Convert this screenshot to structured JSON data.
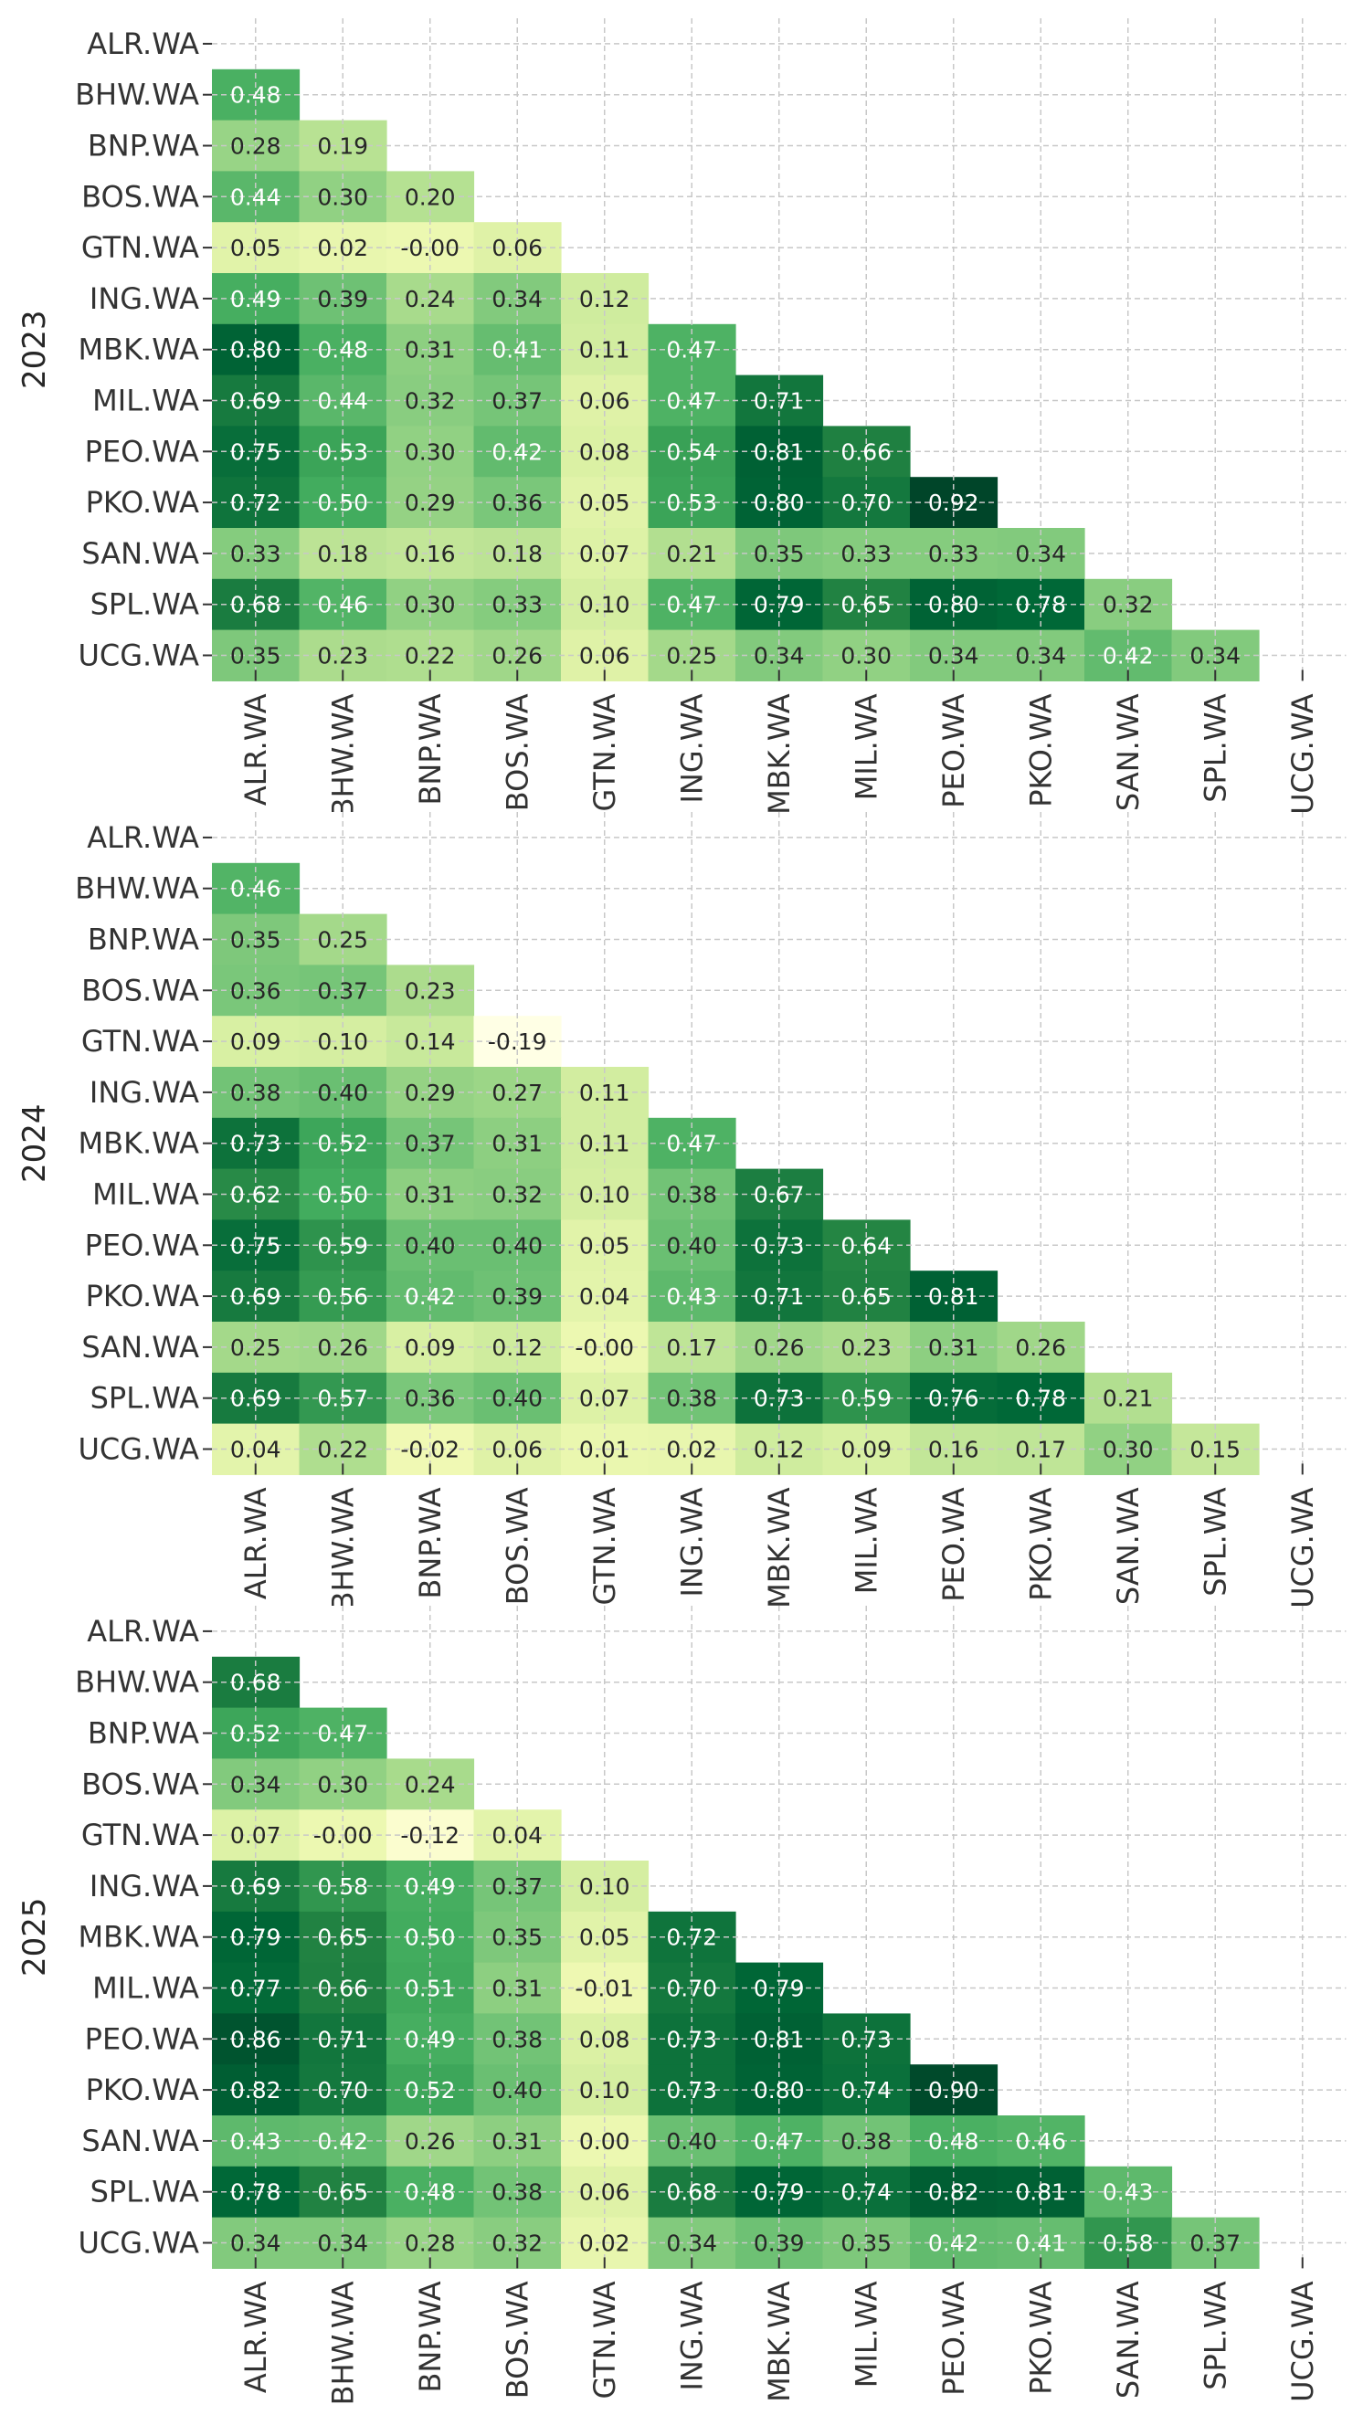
{
  "chart_data": [
    {
      "type": "heatmap",
      "title": "",
      "ylabel": "2023",
      "xlabel": "",
      "colormap": "YlGn",
      "value_range": [
        -0.19,
        0.92
      ],
      "mask": "upper-triangle-including-diagonal",
      "annotation_format": "0.00",
      "rows": [
        "ALR.WA",
        "BHW.WA",
        "BNP.WA",
        "BOS.WA",
        "GTN.WA",
        "ING.WA",
        "MBK.WA",
        "MIL.WA",
        "PEO.WA",
        "PKO.WA",
        "SAN.WA",
        "SPL.WA",
        "UCG.WA"
      ],
      "columns": [
        "ALR.WA",
        "BHW.WA",
        "BNP.WA",
        "BOS.WA",
        "GTN.WA",
        "ING.WA",
        "MBK.WA",
        "MIL.WA",
        "PEO.WA",
        "PKO.WA",
        "SAN.WA",
        "SPL.WA",
        "UCG.WA"
      ],
      "values": [
        [],
        [
          0.48
        ],
        [
          0.28,
          0.19
        ],
        [
          0.44,
          0.3,
          0.2
        ],
        [
          0.05,
          0.02,
          -0.0,
          0.06
        ],
        [
          0.49,
          0.39,
          0.24,
          0.34,
          0.12
        ],
        [
          0.8,
          0.48,
          0.31,
          0.41,
          0.11,
          0.47
        ],
        [
          0.69,
          0.44,
          0.32,
          0.37,
          0.06,
          0.47,
          0.71
        ],
        [
          0.75,
          0.53,
          0.3,
          0.42,
          0.08,
          0.54,
          0.81,
          0.66
        ],
        [
          0.72,
          0.5,
          0.29,
          0.36,
          0.05,
          0.53,
          0.8,
          0.7,
          0.92
        ],
        [
          0.33,
          0.18,
          0.16,
          0.18,
          0.07,
          0.21,
          0.35,
          0.33,
          0.33,
          0.34
        ],
        [
          0.68,
          0.46,
          0.3,
          0.33,
          0.1,
          0.47,
          0.79,
          0.65,
          0.8,
          0.78,
          0.32
        ],
        [
          0.35,
          0.23,
          0.22,
          0.26,
          0.06,
          0.25,
          0.34,
          0.3,
          0.34,
          0.34,
          0.42,
          0.34
        ]
      ],
      "grid": true
    },
    {
      "type": "heatmap",
      "title": "",
      "ylabel": "2024",
      "xlabel": "",
      "colormap": "YlGn",
      "value_range": [
        -0.19,
        0.92
      ],
      "mask": "upper-triangle-including-diagonal",
      "annotation_format": "0.00",
      "rows": [
        "ALR.WA",
        "BHW.WA",
        "BNP.WA",
        "BOS.WA",
        "GTN.WA",
        "ING.WA",
        "MBK.WA",
        "MIL.WA",
        "PEO.WA",
        "PKO.WA",
        "SAN.WA",
        "SPL.WA",
        "UCG.WA"
      ],
      "columns": [
        "ALR.WA",
        "BHW.WA",
        "BNP.WA",
        "BOS.WA",
        "GTN.WA",
        "ING.WA",
        "MBK.WA",
        "MIL.WA",
        "PEO.WA",
        "PKO.WA",
        "SAN.WA",
        "SPL.WA",
        "UCG.WA"
      ],
      "values": [
        [],
        [
          0.46
        ],
        [
          0.35,
          0.25
        ],
        [
          0.36,
          0.37,
          0.23
        ],
        [
          0.09,
          0.1,
          0.14,
          -0.19
        ],
        [
          0.38,
          0.4,
          0.29,
          0.27,
          0.11
        ],
        [
          0.73,
          0.52,
          0.37,
          0.31,
          0.11,
          0.47
        ],
        [
          0.62,
          0.5,
          0.31,
          0.32,
          0.1,
          0.38,
          0.67
        ],
        [
          0.75,
          0.59,
          0.4,
          0.4,
          0.05,
          0.4,
          0.73,
          0.64
        ],
        [
          0.69,
          0.56,
          0.42,
          0.39,
          0.04,
          0.43,
          0.71,
          0.65,
          0.81
        ],
        [
          0.25,
          0.26,
          0.09,
          0.12,
          -0.0,
          0.17,
          0.26,
          0.23,
          0.31,
          0.26
        ],
        [
          0.69,
          0.57,
          0.36,
          0.4,
          0.07,
          0.38,
          0.73,
          0.59,
          0.76,
          0.78,
          0.21
        ],
        [
          0.04,
          0.22,
          -0.02,
          0.06,
          0.01,
          0.02,
          0.12,
          0.09,
          0.16,
          0.17,
          0.3,
          0.15
        ]
      ],
      "grid": true
    },
    {
      "type": "heatmap",
      "title": "",
      "ylabel": "2025",
      "xlabel": "",
      "colormap": "YlGn",
      "value_range": [
        -0.19,
        0.92
      ],
      "mask": "upper-triangle-including-diagonal",
      "annotation_format": "0.00",
      "rows": [
        "ALR.WA",
        "BHW.WA",
        "BNP.WA",
        "BOS.WA",
        "GTN.WA",
        "ING.WA",
        "MBK.WA",
        "MIL.WA",
        "PEO.WA",
        "PKO.WA",
        "SAN.WA",
        "SPL.WA",
        "UCG.WA"
      ],
      "columns": [
        "ALR.WA",
        "BHW.WA",
        "BNP.WA",
        "BOS.WA",
        "GTN.WA",
        "ING.WA",
        "MBK.WA",
        "MIL.WA",
        "PEO.WA",
        "PKO.WA",
        "SAN.WA",
        "SPL.WA",
        "UCG.WA"
      ],
      "values": [
        [],
        [
          0.68
        ],
        [
          0.52,
          0.47
        ],
        [
          0.34,
          0.3,
          0.24
        ],
        [
          0.07,
          -0.0,
          -0.12,
          0.04
        ],
        [
          0.69,
          0.58,
          0.49,
          0.37,
          0.1
        ],
        [
          0.79,
          0.65,
          0.5,
          0.35,
          0.05,
          0.72
        ],
        [
          0.77,
          0.66,
          0.51,
          0.31,
          -0.01,
          0.7,
          0.79
        ],
        [
          0.86,
          0.71,
          0.49,
          0.38,
          0.08,
          0.73,
          0.81,
          0.73
        ],
        [
          0.82,
          0.7,
          0.52,
          0.4,
          0.1,
          0.73,
          0.8,
          0.74,
          0.9
        ],
        [
          0.43,
          0.42,
          0.26,
          0.31,
          0.0,
          0.4,
          0.47,
          0.38,
          0.48,
          0.46
        ],
        [
          0.78,
          0.65,
          0.48,
          0.38,
          0.06,
          0.68,
          0.79,
          0.74,
          0.82,
          0.81,
          0.43
        ],
        [
          0.34,
          0.34,
          0.28,
          0.32,
          0.02,
          0.34,
          0.39,
          0.35,
          0.42,
          0.41,
          0.58,
          0.37
        ]
      ],
      "grid": true
    }
  ]
}
